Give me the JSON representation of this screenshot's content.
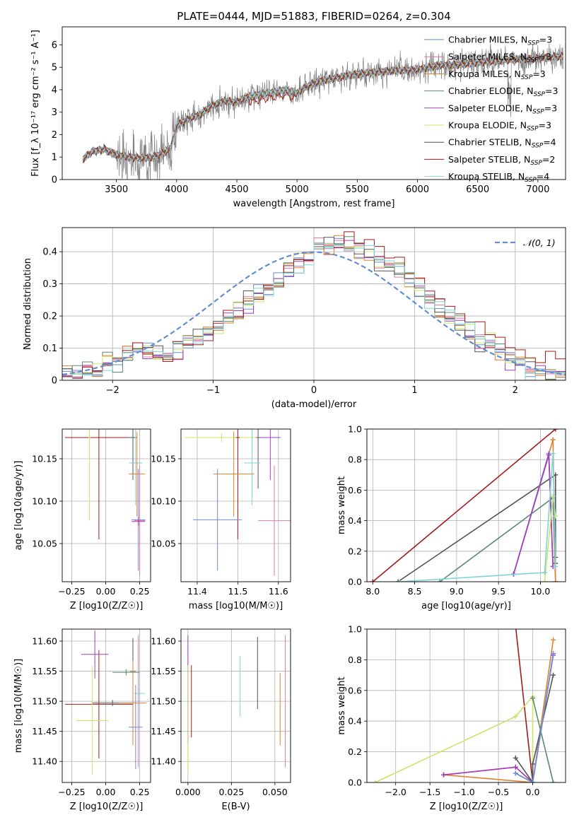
{
  "figure": {
    "title": "PLATE=0444, MJD=51883, FIBERID=0264, z=0.304"
  },
  "colors": {
    "chabrier_miles": "#6a8bd9",
    "salpeter_miles": "#e377a8",
    "kroupa_miles": "#e0812a",
    "chabrier_elodie": "#5b8b6b",
    "salpeter_elodie": "#a23cb8",
    "kroupa_elodie": "#cde36a",
    "chabrier_stelib": "#555555",
    "salpeter_stelib": "#a31a1a",
    "kroupa_stelib": "#82d3d9",
    "normal_curve": "#5f8fd2",
    "grid": "#b0b0b0"
  },
  "chart_data": [
    {
      "id": "spectrum",
      "type": "line",
      "xlabel": "wavelength [Angstrom, rest frame]",
      "ylabel": "Flux [f_λ 10⁻¹⁷ erg cm⁻² s⁻¹ A⁻¹]",
      "xlim": [
        3050,
        7230
      ],
      "ylim": [
        0,
        6.8
      ],
      "xticks": [
        3500,
        4000,
        4500,
        5000,
        5500,
        6000,
        6500,
        7000
      ],
      "yticks": [
        0,
        1,
        2,
        3,
        4,
        5,
        6
      ],
      "grid": false,
      "legend_position": "top-right",
      "data_x_range": [
        3220,
        7210
      ],
      "continuum": {
        "x": [
          3220,
          3300,
          3400,
          3500,
          3600,
          3700,
          3800,
          3900,
          3950,
          4000,
          4100,
          4200,
          4300,
          4400,
          4500,
          4600,
          4700,
          4800,
          4900,
          5000,
          5100,
          5200,
          5300,
          5400,
          5500,
          5600,
          5700,
          5800,
          5900,
          6000,
          6100,
          6200,
          6300,
          6400,
          6500,
          6600,
          6700,
          6800,
          6900,
          7000,
          7100,
          7210
        ],
        "y": [
          0.9,
          1.25,
          1.35,
          1.1,
          1.0,
          0.95,
          1.0,
          1.2,
          1.4,
          2.4,
          2.7,
          2.9,
          3.3,
          3.5,
          3.45,
          3.7,
          3.8,
          3.9,
          4.0,
          3.85,
          4.2,
          4.4,
          4.5,
          4.6,
          4.7,
          4.75,
          4.8,
          4.85,
          4.85,
          4.9,
          5.0,
          5.1,
          5.1,
          5.15,
          5.2,
          5.25,
          5.3,
          5.35,
          5.35,
          5.4,
          5.45,
          5.5
        ]
      },
      "series": [
        {
          "name": "Chabrier MILES, N$_{SSP}$=3",
          "key": "chabrier_miles",
          "n_ssp": 3
        },
        {
          "name": "Salpeter MILES, N$_{SSP}$=3",
          "key": "salpeter_miles",
          "n_ssp": 3
        },
        {
          "name": "Kroupa MILES, N$_{SSP}$=3",
          "key": "kroupa_miles",
          "n_ssp": 3
        },
        {
          "name": "Chabrier ELODIE, N$_{SSP}$=3",
          "key": "chabrier_elodie",
          "n_ssp": 3
        },
        {
          "name": "Salpeter ELODIE, N$_{SSP}$=3",
          "key": "salpeter_elodie",
          "n_ssp": 3
        },
        {
          "name": "Kroupa ELODIE, N$_{SSP}$=3",
          "key": "kroupa_elodie",
          "n_ssp": 3
        },
        {
          "name": "Chabrier STELIB, N$_{SSP}$=4",
          "key": "chabrier_stelib",
          "n_ssp": 4
        },
        {
          "name": "Salpeter STELIB, N$_{SSP}$=2",
          "key": "salpeter_stelib",
          "n_ssp": 2
        },
        {
          "name": "Kroupa STELIB, N$_{SSP}$=4",
          "key": "kroupa_stelib",
          "n_ssp": 4
        }
      ]
    },
    {
      "id": "residuals",
      "type": "step-histogram",
      "xlabel": "(data-model)/error",
      "ylabel": "Normed distribution",
      "xlim": [
        -2.5,
        2.5
      ],
      "ylim": [
        0,
        0.475
      ],
      "xticks": [
        -2,
        -1,
        0,
        1,
        2
      ],
      "yticks": [
        0.0,
        0.1,
        0.2,
        0.3,
        0.4
      ],
      "grid": true,
      "legend_position": "top-right",
      "legend_label": "N(0,1)",
      "bin_width": 0.1,
      "bin_start": -2.5,
      "base_values": [
        0.02,
        0.02,
        0.03,
        0.03,
        0.05,
        0.06,
        0.08,
        0.1,
        0.09,
        0.08,
        0.08,
        0.09,
        0.12,
        0.14,
        0.15,
        0.17,
        0.2,
        0.22,
        0.25,
        0.27,
        0.29,
        0.31,
        0.34,
        0.36,
        0.38,
        0.41,
        0.42,
        0.43,
        0.42,
        0.41,
        0.39,
        0.37,
        0.36,
        0.34,
        0.31,
        0.28,
        0.25,
        0.22,
        0.2,
        0.18,
        0.15,
        0.13,
        0.11,
        0.09,
        0.07,
        0.06,
        0.04,
        0.03,
        0.03,
        0.02
      ]
    },
    {
      "id": "z_age",
      "type": "errorbar",
      "xlabel": "Z [log10(Z/Z☉)]",
      "ylabel": "age [log10(age/yr)]",
      "xlim": [
        -0.32,
        0.33
      ],
      "ylim": [
        10.005,
        10.185
      ],
      "xticks": [
        -0.25,
        0.0,
        0.25
      ],
      "xticklabels": [
        "−0.25",
        "0.00",
        "0.25"
      ],
      "yticks": [
        10.05,
        10.1,
        10.15
      ],
      "yticklabels": [
        "10.05",
        "10.10",
        "10.15"
      ],
      "grid": true,
      "points": [
        {
          "key": "salpeter_stelib",
          "x": -0.05,
          "xerr": 0.25,
          "y": 10.175,
          "yerr": 0.12
        },
        {
          "key": "kroupa_elodie",
          "x": -0.12,
          "xerr": 0.005,
          "y": 10.175,
          "yerr": 0.098
        },
        {
          "key": "chabrier_stelib",
          "x": 0.2,
          "xerr": 0.03,
          "y": 10.175,
          "yerr": 0.05
        },
        {
          "key": "kroupa_stelib",
          "x": 0.22,
          "xerr": 0.05,
          "y": 10.145,
          "yerr": 0.05
        },
        {
          "key": "kroupa_miles",
          "x": 0.23,
          "xerr": 0.06,
          "y": 10.132,
          "yerr": 0.05
        },
        {
          "key": "chabrier_miles",
          "x": 0.24,
          "xerr": 0.05,
          "y": 10.078,
          "yerr": 0.06
        },
        {
          "key": "salpeter_miles",
          "x": 0.25,
          "xerr": 0.04,
          "y": 10.077,
          "yerr": 0.065
        },
        {
          "key": "salpeter_elodie",
          "x": 0.24,
          "xerr": 0.05,
          "y": 10.076,
          "yerr": 0.005
        }
      ]
    },
    {
      "id": "mass_age",
      "type": "errorbar",
      "xlabel": "mass [log10(M/M☉)]",
      "ylabel": "",
      "xlim": [
        11.36,
        11.63
      ],
      "ylim": [
        10.005,
        10.185
      ],
      "xticks": [
        11.4,
        11.5,
        11.6
      ],
      "xticklabels": [
        "11.4",
        "11.5",
        "11.6"
      ],
      "yticks": [
        10.05,
        10.1,
        10.15
      ],
      "yticklabels": [
        "10.05",
        "10.10",
        "10.15"
      ],
      "grid": true,
      "points": [
        {
          "key": "kroupa_elodie",
          "x": 11.46,
          "xerr": 0.09,
          "y": 10.175,
          "yerr": 0.005
        },
        {
          "key": "salpeter_stelib",
          "x": 11.5,
          "xerr": 0.005,
          "y": 10.175,
          "yerr": 0.12
        },
        {
          "key": "salpeter_elodie",
          "x": 11.58,
          "xerr": 0.025,
          "y": 10.175,
          "yerr": 0.05
        },
        {
          "key": "chabrier_stelib",
          "x": 11.55,
          "xerr": 0.005,
          "y": 10.175,
          "yerr": 0.06
        },
        {
          "key": "kroupa_stelib",
          "x": 11.535,
          "xerr": 0.02,
          "y": 10.145,
          "yerr": 0.05
        },
        {
          "key": "kroupa_miles",
          "x": 11.49,
          "xerr": 0.05,
          "y": 10.132,
          "yerr": 0.05
        },
        {
          "key": "chabrier_miles",
          "x": 11.45,
          "xerr": 0.06,
          "y": 10.078,
          "yerr": 0.06
        },
        {
          "key": "salpeter_miles",
          "x": 11.59,
          "xerr": 0.04,
          "y": 10.077,
          "yerr": 0.065
        }
      ]
    },
    {
      "id": "age_weight",
      "type": "line",
      "xlabel": "age [log10(age/yr)]",
      "ylabel": "mass weight",
      "xlim": [
        7.93,
        10.3
      ],
      "ylim": [
        0,
        1
      ],
      "xticks": [
        8.0,
        8.5,
        9.0,
        9.5,
        10.0
      ],
      "xticklabels": [
        "8.0",
        "8.5",
        "9.0",
        "9.5",
        "10.0"
      ],
      "yticks": [
        0.0,
        0.2,
        0.4,
        0.6,
        0.8,
        1.0
      ],
      "yticklabels": [
        "0.0",
        "0.2",
        "0.4",
        "0.6",
        "0.8",
        "1.0"
      ],
      "grid": true,
      "series": [
        {
          "key": "salpeter_stelib",
          "x": [
            8.0,
            10.18
          ],
          "y": [
            0.0,
            1.0
          ]
        },
        {
          "key": "chabrier_stelib",
          "x": [
            8.3,
            10.18,
            10.18,
            10.18
          ],
          "y": [
            0.0,
            0.7,
            0.16,
            0.12
          ]
        },
        {
          "key": "chabrier_elodie",
          "x": [
            8.8,
            10.15,
            10.18
          ],
          "y": [
            0.0,
            0.55,
            0.0
          ]
        },
        {
          "key": "kroupa_miles",
          "x": [
            9.68,
            10.15,
            10.18
          ],
          "y": [
            0.05,
            0.93,
            0.0
          ]
        },
        {
          "key": "salpeter_miles",
          "x": [
            9.68,
            10.1,
            10.15
          ],
          "y": [
            0.05,
            0.84,
            0.1
          ]
        },
        {
          "key": "chabrier_miles",
          "x": [
            9.68,
            10.1,
            10.15
          ],
          "y": [
            0.05,
            0.84,
            0.1
          ]
        },
        {
          "key": "salpeter_elodie",
          "x": [
            9.68,
            10.1,
            10.15
          ],
          "y": [
            0.05,
            0.83,
            0.1
          ]
        },
        {
          "key": "kroupa_elodie",
          "x": [
            10.05,
            10.15,
            10.18
          ],
          "y": [
            0.0,
            0.56,
            0.43
          ]
        },
        {
          "key": "kroupa_stelib",
          "x": [
            8.32,
            10.05,
            10.15,
            10.18
          ],
          "y": [
            0.0,
            0.06,
            0.84,
            0.1
          ]
        }
      ]
    },
    {
      "id": "z_mass",
      "type": "errorbar",
      "xlabel": "Z [log10(Z/Z☉)]",
      "ylabel": "mass [log10(M/M☉)]",
      "xlim": [
        -0.32,
        0.33
      ],
      "ylim": [
        11.365,
        11.62
      ],
      "xticks": [
        -0.25,
        0.0,
        0.25
      ],
      "xticklabels": [
        "−0.25",
        "0.00",
        "0.25"
      ],
      "yticks": [
        11.4,
        11.45,
        11.5,
        11.55,
        11.6
      ],
      "yticklabels": [
        "11.40",
        "11.45",
        "11.50",
        "11.55",
        "11.60"
      ],
      "grid": true,
      "points": [
        {
          "key": "salpeter_stelib",
          "x": -0.05,
          "xerr": 0.25,
          "y": 11.495,
          "yerr": 0.09
        },
        {
          "key": "chabrier_stelib",
          "x": 0.05,
          "xerr": 0.15,
          "y": 11.497,
          "yerr": 0.005
        },
        {
          "key": "kroupa_elodie",
          "x": -0.1,
          "xerr": 0.12,
          "y": 11.468,
          "yerr": 0.09
        },
        {
          "key": "salpeter_elodie",
          "x": -0.08,
          "xerr": 0.1,
          "y": 11.578,
          "yerr": 0.04
        },
        {
          "key": "chabrier_stelib",
          "x": 0.2,
          "xerr": 0.02,
          "y": 11.55,
          "yerr": 0.055
        },
        {
          "key": "chabrier_elodie",
          "x": 0.15,
          "xerr": 0.1,
          "y": 11.548,
          "yerr": 0.005
        },
        {
          "key": "kroupa_stelib",
          "x": 0.25,
          "xerr": 0.04,
          "y": 11.513,
          "yerr": 0.035
        },
        {
          "key": "kroupa_miles",
          "x": 0.2,
          "xerr": 0.1,
          "y": 11.497,
          "yerr": 0.07
        },
        {
          "key": "salpeter_miles",
          "x": 0.24,
          "xerr": 0.01,
          "y": 11.5,
          "yerr": 0.11
        },
        {
          "key": "chabrier_miles",
          "x": 0.22,
          "xerr": 0.05,
          "y": 11.457,
          "yerr": 0.07
        }
      ]
    },
    {
      "id": "ebv_mass",
      "type": "errorbar",
      "xlabel": "E(B-V)",
      "ylabel": "",
      "xlim": [
        -0.004,
        0.059
      ],
      "ylim": [
        11.365,
        11.62
      ],
      "xticks": [
        0.0,
        0.025,
        0.05
      ],
      "xticklabels": [
        "0.000",
        "0.025",
        "0.050"
      ],
      "yticks": [
        11.4,
        11.45,
        11.5,
        11.55,
        11.6
      ],
      "yticklabels": [
        "11.40",
        "11.45",
        "11.50",
        "11.55",
        "11.60"
      ],
      "grid": true,
      "points": [
        {
          "key": "salpeter_elodie",
          "x": 0.0,
          "xerr": 0.0,
          "y": 11.52,
          "yerr": 0.09
        },
        {
          "key": "kroupa_elodie",
          "x": 0.0,
          "xerr": 0.0,
          "y": 11.47,
          "yerr": 0.09
        },
        {
          "key": "salpeter_stelib",
          "x": 0.002,
          "xerr": 0.0,
          "y": 11.5,
          "yerr": 0.06
        },
        {
          "key": "kroupa_stelib",
          "x": 0.03,
          "xerr": 0.0,
          "y": 11.525,
          "yerr": 0.05
        },
        {
          "key": "chabrier_stelib",
          "x": 0.04,
          "xerr": 0.0,
          "y": 11.547,
          "yerr": 0.06
        },
        {
          "key": "kroupa_miles",
          "x": 0.053,
          "xerr": 0.0,
          "y": 11.487,
          "yerr": 0.06
        },
        {
          "key": "salpeter_miles",
          "x": 0.056,
          "xerr": 0.0,
          "y": 11.5,
          "yerr": 0.11
        }
      ]
    },
    {
      "id": "z_weight",
      "type": "line",
      "xlabel": "Z [log10(Z/Z☉)]",
      "ylabel": "mass weight",
      "xlim": [
        -2.42,
        0.48
      ],
      "ylim": [
        0,
        1
      ],
      "xticks": [
        -2.0,
        -1.5,
        -1.0,
        -0.5,
        0.0
      ],
      "xticklabels": [
        "−2.0",
        "−1.5",
        "−1.0",
        "−0.5",
        "0.0"
      ],
      "yticks": [
        0.0,
        0.2,
        0.4,
        0.6,
        0.8,
        1.0
      ],
      "yticklabels": [
        "0.0",
        "0.2",
        "0.4",
        "0.6",
        "0.8",
        "1.0"
      ],
      "grid": true,
      "series": [
        {
          "key": "salpeter_stelib",
          "x": [
            -0.25,
            0.0
          ],
          "y": [
            1.02,
            0.0
          ]
        },
        {
          "key": "kroupa_elodie",
          "x": [
            -2.3,
            -0.25,
            0.0,
            0.0
          ],
          "y": [
            0.0,
            0.43,
            0.56,
            0.0
          ]
        },
        {
          "key": "kroupa_miles",
          "x": [
            -1.3,
            0.0,
            0.3
          ],
          "y": [
            0.05,
            0.0,
            0.93
          ]
        },
        {
          "key": "salpeter_miles",
          "x": [
            -1.3,
            -0.25,
            0.0,
            0.3
          ],
          "y": [
            0.05,
            0.1,
            0.0,
            0.84
          ]
        },
        {
          "key": "salpeter_elodie",
          "x": [
            -1.3,
            -0.25,
            0.0,
            0.3
          ],
          "y": [
            0.05,
            0.1,
            0.0,
            0.83
          ]
        },
        {
          "key": "chabrier_stelib",
          "x": [
            -0.25,
            0.0,
            0.0,
            0.3
          ],
          "y": [
            0.16,
            0.0,
            0.12,
            0.7
          ]
        },
        {
          "key": "chabrier_elodie",
          "x": [
            0.0,
            0.3
          ],
          "y": [
            0.55,
            0.0
          ]
        },
        {
          "key": "kroupa_stelib",
          "x": [
            -0.25,
            0.0,
            0.3
          ],
          "y": [
            0.06,
            0.0,
            0.84
          ]
        },
        {
          "key": "chabrier_miles",
          "x": [
            -0.25,
            0.0,
            0.3
          ],
          "y": [
            0.06,
            0.0,
            0.84
          ]
        }
      ]
    }
  ]
}
